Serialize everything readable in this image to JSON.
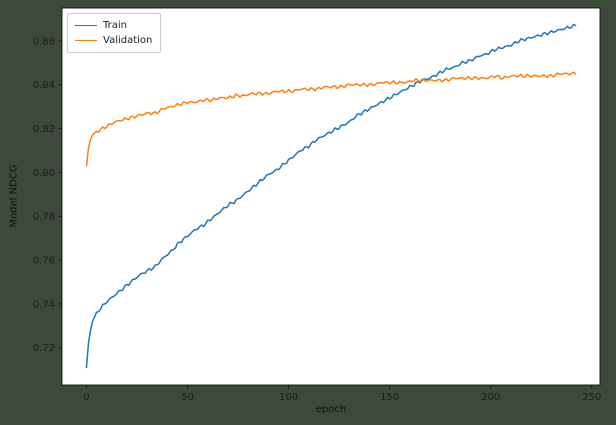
{
  "chart_data": {
    "type": "line",
    "title": "",
    "xlabel": "epoch",
    "ylabel": "Model NDCG",
    "xlim": [
      -12.1,
      254.1
    ],
    "ylim": [
      0.703,
      0.875
    ],
    "x_ticks": [
      0,
      50,
      100,
      150,
      200,
      250
    ],
    "y_ticks": [
      0.72,
      0.74,
      0.76,
      0.78,
      0.8,
      0.82,
      0.84,
      0.86
    ],
    "grid": false,
    "legend": {
      "position": "upper left",
      "entries": [
        "Train",
        "Validation"
      ]
    },
    "plot_background": "#ffffff",
    "figure_background": "#3c4a3a",
    "series": [
      {
        "name": "Train",
        "color": "#1f77b4",
        "x": [
          0,
          1,
          2,
          3,
          4,
          6,
          8,
          10,
          14,
          18,
          22,
          26,
          30,
          34,
          38,
          42,
          46,
          50,
          54,
          58,
          62,
          66,
          70,
          74,
          78,
          82,
          86,
          90,
          94,
          98,
          102,
          106,
          110,
          114,
          118,
          122,
          126,
          130,
          134,
          138,
          142,
          146,
          150,
          154,
          158,
          162,
          166,
          170,
          174,
          178,
          182,
          186,
          190,
          194,
          198,
          202,
          206,
          210,
          214,
          218,
          222,
          226,
          230,
          234,
          238,
          242
        ],
        "y": [
          0.711,
          0.722,
          0.728,
          0.732,
          0.734,
          0.737,
          0.739,
          0.741,
          0.744,
          0.747,
          0.75,
          0.753,
          0.755,
          0.757,
          0.761,
          0.764,
          0.768,
          0.771,
          0.774,
          0.776,
          0.779,
          0.782,
          0.785,
          0.787,
          0.79,
          0.793,
          0.796,
          0.799,
          0.801,
          0.804,
          0.807,
          0.81,
          0.812,
          0.815,
          0.817,
          0.819,
          0.821,
          0.823,
          0.826,
          0.828,
          0.83,
          0.832,
          0.834,
          0.836,
          0.838,
          0.84,
          0.842,
          0.843,
          0.845,
          0.847,
          0.848,
          0.85,
          0.851,
          0.853,
          0.854,
          0.856,
          0.857,
          0.858,
          0.86,
          0.861,
          0.862,
          0.863,
          0.864,
          0.865,
          0.866,
          0.867
        ]
      },
      {
        "name": "Validation",
        "color": "#ff7f0e",
        "x": [
          0,
          1,
          2,
          3,
          4,
          6,
          8,
          10,
          14,
          18,
          22,
          26,
          30,
          34,
          38,
          42,
          46,
          50,
          54,
          58,
          62,
          66,
          70,
          74,
          78,
          82,
          86,
          90,
          94,
          98,
          102,
          106,
          110,
          114,
          118,
          122,
          126,
          130,
          134,
          138,
          142,
          146,
          150,
          154,
          158,
          162,
          166,
          170,
          174,
          178,
          182,
          186,
          190,
          194,
          198,
          202,
          206,
          210,
          214,
          218,
          222,
          226,
          230,
          234,
          238,
          242
        ],
        "y": [
          0.803,
          0.811,
          0.815,
          0.817,
          0.818,
          0.819,
          0.82,
          0.821,
          0.823,
          0.824,
          0.825,
          0.826,
          0.827,
          0.827,
          0.829,
          0.83,
          0.831,
          0.832,
          0.832,
          0.833,
          0.833,
          0.834,
          0.834,
          0.835,
          0.835,
          0.836,
          0.836,
          0.836,
          0.837,
          0.837,
          0.837,
          0.838,
          0.838,
          0.838,
          0.839,
          0.839,
          0.839,
          0.84,
          0.84,
          0.84,
          0.84,
          0.841,
          0.841,
          0.841,
          0.841,
          0.842,
          0.842,
          0.842,
          0.842,
          0.842,
          0.843,
          0.843,
          0.843,
          0.843,
          0.843,
          0.844,
          0.843,
          0.844,
          0.844,
          0.844,
          0.844,
          0.844,
          0.844,
          0.845,
          0.845,
          0.845
        ]
      }
    ]
  }
}
